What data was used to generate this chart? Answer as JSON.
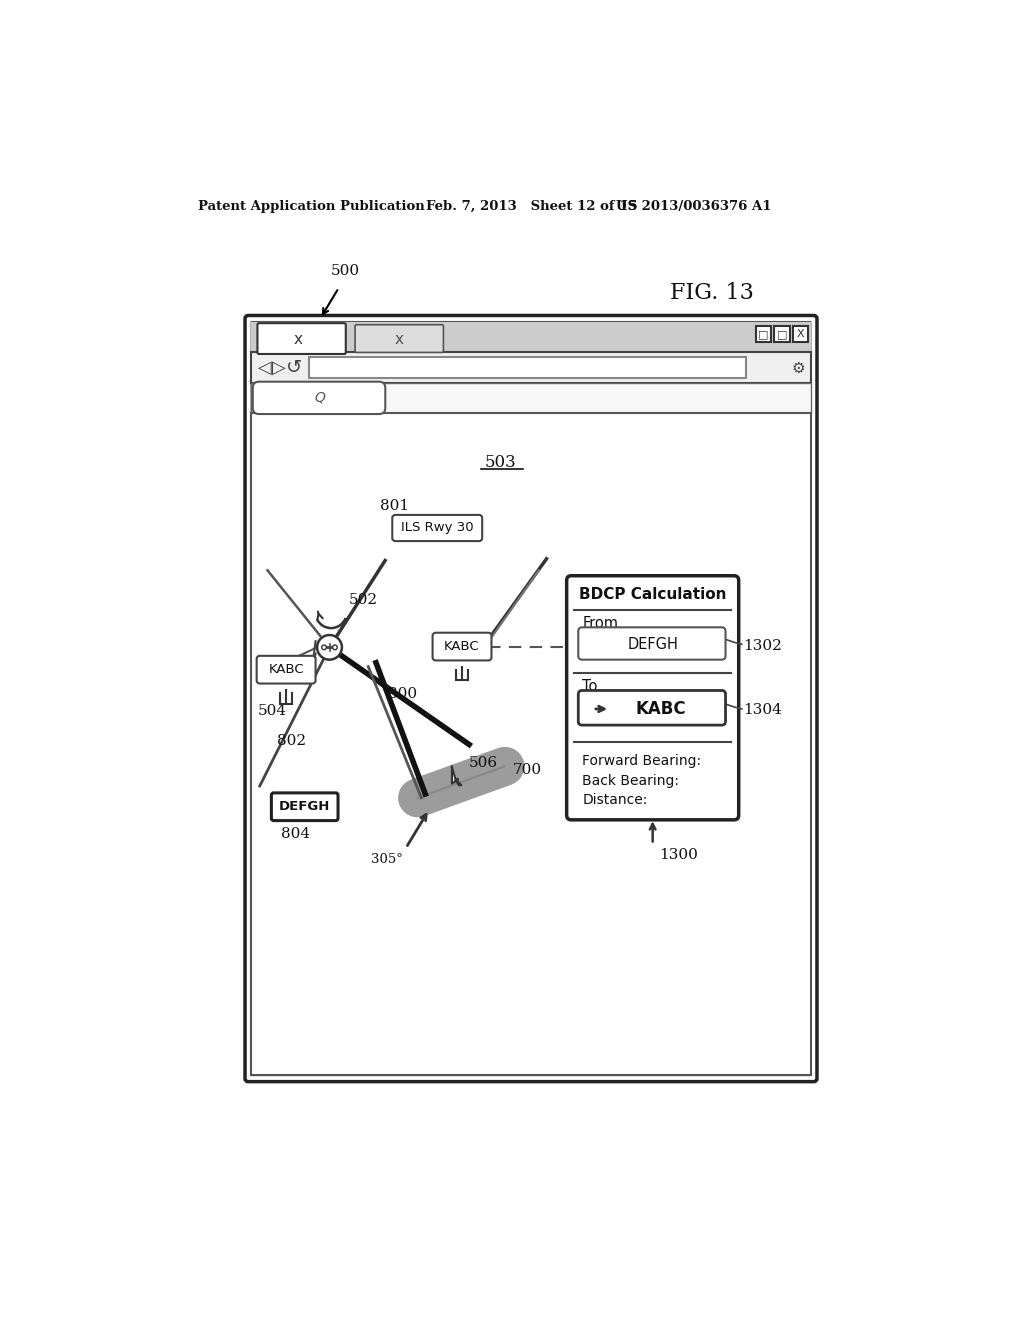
{
  "bg_color": "#ffffff",
  "header_left": "Patent Application Publication",
  "header_mid": "Feb. 7, 2013   Sheet 12 of 15",
  "header_right": "US 2013/0036376 A1",
  "fig_label": "FIG. 13",
  "ref_500": "500",
  "ref_502": "502",
  "ref_503": "503",
  "ref_504": "504",
  "ref_506": "506",
  "ref_700": "700",
  "ref_800": "800",
  "ref_801": "801",
  "ref_802": "802",
  "ref_804": "804",
  "ref_1300": "1300",
  "ref_1302": "1302",
  "ref_1304": "1304",
  "label_KABC": "KABC",
  "label_DEFGH": "DEFGH",
  "label_ILS_Rwy_30": "ILS Rwy 30",
  "label_305": "305°",
  "bdcp_title": "BDCP Calculation",
  "bdcp_from": "From",
  "bdcp_from_val": "DEFGH",
  "bdcp_to": "To",
  "bdcp_to_val": "KABC",
  "bdcp_fwd": "Forward Bearing:",
  "bdcp_back": "Back Bearing:",
  "bdcp_dist": "Distance:"
}
